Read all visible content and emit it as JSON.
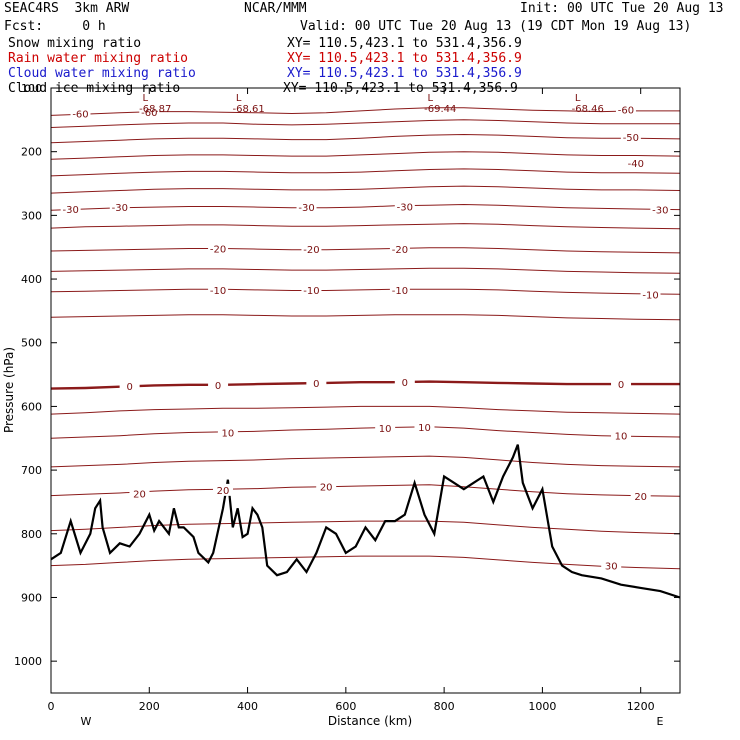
{
  "header": {
    "model": "SEAC4RS  3km ARW",
    "fcst": "Fcst:     0 h",
    "center": "NCAR/MMM",
    "init": "Init: 00 UTC Tue 20 Aug 13",
    "valid": "Valid: 00 UTC Tue 20 Aug 13 (19 CDT Mon 19 Aug 13)"
  },
  "legend": [
    {
      "label": "Snow mixing ratio",
      "xy": "XY= 110.5,423.1 to 531.4,356.9",
      "color": "#000000"
    },
    {
      "label": "Rain water mixing ratio",
      "xy": "XY= 110.5,423.1 to 531.4,356.9",
      "color": "#cc0000"
    },
    {
      "label": "Cloud water mixing ratio",
      "xy": "XY= 110.5,423.1 to 531.4,356.9",
      "color": "#1a1acc"
    },
    {
      "label": "Cloud ice mixing ratio",
      "xy": "XY= 110.5,423.1 to 531.4,356.9",
      "color": "#000000"
    }
  ],
  "chart_data": {
    "type": "line",
    "xlabel": "Distance (km)",
    "ylabel": "Pressure (hPa)",
    "xlim": [
      0,
      1280
    ],
    "ylim": [
      100,
      1050
    ],
    "x_ticks": [
      "0",
      "200",
      "400",
      "600",
      "800",
      "1000",
      "1200"
    ],
    "y_ticks": [
      "100",
      "200",
      "300",
      "400",
      "500",
      "600",
      "700",
      "800",
      "900",
      "1000"
    ],
    "x_end_labels": {
      "left": "W",
      "right": "E"
    },
    "temperature_contour_color": "#8b1a1a",
    "terrain_color": "#000000",
    "isotherms": [
      {
        "temp": -60,
        "p": [
          143,
          141,
          139,
          137,
          137,
          138,
          139,
          140,
          139,
          136,
          133,
          131,
          131,
          133,
          135,
          136,
          137,
          136,
          136
        ]
      },
      {
        "temp": -55,
        "p": [
          162,
          160,
          158,
          156,
          155,
          155,
          157,
          158,
          157,
          155,
          153,
          151,
          150,
          151,
          153,
          155,
          156,
          156,
          156
        ]
      },
      {
        "temp": -50,
        "p": [
          186,
          184,
          182,
          180,
          179,
          179,
          180,
          181,
          181,
          179,
          176,
          174,
          173,
          174,
          176,
          178,
          179,
          179,
          180
        ]
      },
      {
        "temp": -45,
        "p": [
          212,
          210,
          208,
          206,
          205,
          205,
          206,
          207,
          207,
          205,
          203,
          201,
          200,
          201,
          203,
          205,
          206,
          206,
          207
        ]
      },
      {
        "temp": -40,
        "p": [
          238,
          236,
          234,
          232,
          231,
          231,
          232,
          233,
          233,
          232,
          230,
          228,
          227,
          228,
          230,
          232,
          233,
          233,
          234
        ]
      },
      {
        "temp": -35,
        "p": [
          265,
          263,
          261,
          259,
          258,
          258,
          259,
          260,
          260,
          259,
          257,
          255,
          254,
          255,
          257,
          259,
          260,
          260,
          261
        ]
      },
      {
        "temp": -30,
        "p": [
          292,
          290,
          288,
          287,
          286,
          286,
          287,
          288,
          288,
          287,
          285,
          284,
          283,
          284,
          286,
          288,
          289,
          290,
          291
        ]
      },
      {
        "temp": -25,
        "p": [
          320,
          318,
          317,
          316,
          315,
          315,
          316,
          317,
          317,
          316,
          315,
          314,
          313,
          314,
          316,
          318,
          319,
          320,
          321
        ]
      },
      {
        "temp": -20,
        "p": [
          356,
          355,
          354,
          353,
          352,
          352,
          353,
          354,
          354,
          353,
          352,
          351,
          351,
          352,
          354,
          356,
          357,
          358,
          359
        ]
      },
      {
        "temp": -15,
        "p": [
          388,
          387,
          386,
          385,
          384,
          384,
          385,
          386,
          386,
          385,
          384,
          383,
          383,
          384,
          386,
          388,
          389,
          390,
          391
        ]
      },
      {
        "temp": -10,
        "p": [
          420,
          419,
          418,
          417,
          416,
          416,
          417,
          418,
          418,
          417,
          416,
          416,
          416,
          417,
          419,
          421,
          422,
          423,
          424
        ]
      },
      {
        "temp": -5,
        "p": [
          460,
          459,
          458,
          457,
          456,
          456,
          457,
          458,
          458,
          457,
          456,
          456,
          456,
          457,
          459,
          461,
          462,
          463,
          464
        ]
      },
      {
        "temp": 0,
        "p": [
          572,
          571,
          569,
          567,
          566,
          566,
          565,
          564,
          563,
          562,
          562,
          561,
          562,
          563,
          564,
          565,
          565,
          565,
          565
        ]
      },
      {
        "temp": 5,
        "p": [
          612,
          610,
          607,
          605,
          604,
          603,
          603,
          602,
          601,
          600,
          600,
          600,
          602,
          605,
          607,
          609,
          610,
          611,
          612
        ]
      },
      {
        "temp": 10,
        "p": [
          650,
          648,
          646,
          643,
          641,
          640,
          639,
          637,
          636,
          634,
          633,
          632,
          634,
          638,
          641,
          644,
          646,
          647,
          648
        ]
      },
      {
        "temp": 15,
        "p": [
          695,
          693,
          691,
          688,
          686,
          685,
          684,
          682,
          681,
          680,
          679,
          678,
          680,
          684,
          688,
          691,
          693,
          694,
          695
        ]
      },
      {
        "temp": 20,
        "p": [
          740,
          738,
          736,
          733,
          731,
          730,
          729,
          727,
          726,
          725,
          724,
          723,
          726,
          730,
          734,
          737,
          739,
          740,
          741
        ]
      },
      {
        "temp": 25,
        "p": [
          795,
          793,
          790,
          787,
          785,
          784,
          783,
          782,
          781,
          780,
          780,
          780,
          782,
          786,
          790,
          793,
          796,
          798,
          800
        ]
      },
      {
        "temp": 30,
        "p": [
          850,
          848,
          845,
          842,
          840,
          839,
          838,
          837,
          836,
          835,
          835,
          835,
          837,
          841,
          845,
          848,
          851,
          853,
          855
        ]
      }
    ],
    "isotherm_x": [
      0,
      70,
      140,
      210,
      280,
      350,
      420,
      490,
      560,
      630,
      700,
      770,
      840,
      910,
      980,
      1050,
      1120,
      1190,
      1280
    ],
    "terrain": {
      "x": [
        0,
        20,
        40,
        50,
        60,
        80,
        90,
        100,
        105,
        120,
        140,
        160,
        180,
        200,
        210,
        220,
        240,
        250,
        260,
        270,
        290,
        300,
        320,
        330,
        350,
        360,
        370,
        380,
        390,
        400,
        410,
        420,
        430,
        440,
        460,
        480,
        500,
        520,
        540,
        560,
        580,
        600,
        620,
        640,
        660,
        680,
        700,
        720,
        740,
        760,
        780,
        800,
        820,
        840,
        860,
        880,
        900,
        920,
        940,
        950,
        960,
        980,
        1000,
        1020,
        1040,
        1060,
        1080,
        1120,
        1160,
        1200,
        1240,
        1280
      ],
      "p": [
        840,
        830,
        780,
        805,
        830,
        800,
        760,
        748,
        790,
        830,
        815,
        820,
        800,
        770,
        795,
        780,
        800,
        760,
        790,
        790,
        805,
        830,
        845,
        830,
        760,
        715,
        790,
        760,
        805,
        800,
        760,
        770,
        790,
        850,
        865,
        860,
        840,
        860,
        830,
        790,
        800,
        830,
        820,
        790,
        810,
        780,
        780,
        770,
        720,
        770,
        800,
        710,
        720,
        730,
        720,
        710,
        750,
        710,
        680,
        660,
        720,
        760,
        730,
        820,
        850,
        860,
        865,
        870,
        880,
        885,
        890,
        900
      ]
    },
    "lows": [
      {
        "x": 200,
        "label": "-68.87"
      },
      {
        "x": 390,
        "label": "-68.61"
      },
      {
        "x": 780,
        "label": "-69.44"
      },
      {
        "x": 1080,
        "label": "-68.46"
      }
    ],
    "contour_labels": [
      {
        "temp": "-60",
        "x": 60,
        "p": 140
      },
      {
        "temp": "-60",
        "x": 200,
        "p": 138
      },
      {
        "temp": "-60",
        "x": 1170,
        "p": 134
      },
      {
        "temp": "-50",
        "x": 1180,
        "p": 177
      },
      {
        "temp": "-40",
        "x": 1190,
        "p": 218
      },
      {
        "temp": "-30",
        "x": 40,
        "p": 290
      },
      {
        "temp": "-30",
        "x": 140,
        "p": 287
      },
      {
        "temp": "-30",
        "x": 520,
        "p": 287
      },
      {
        "temp": "-30",
        "x": 720,
        "p": 286
      },
      {
        "temp": "-30",
        "x": 1240,
        "p": 291
      },
      {
        "temp": "-20",
        "x": 340,
        "p": 352
      },
      {
        "temp": "-20",
        "x": 530,
        "p": 353
      },
      {
        "temp": "-20",
        "x": 710,
        "p": 353
      },
      {
        "temp": "-10",
        "x": 340,
        "p": 417
      },
      {
        "temp": "-10",
        "x": 530,
        "p": 417
      },
      {
        "temp": "-10",
        "x": 710,
        "p": 417
      },
      {
        "temp": "-10",
        "x": 1220,
        "p": 424
      },
      {
        "temp": "0",
        "x": 160,
        "p": 568
      },
      {
        "temp": "0",
        "x": 340,
        "p": 566
      },
      {
        "temp": "0",
        "x": 540,
        "p": 563
      },
      {
        "temp": "0",
        "x": 720,
        "p": 562
      },
      {
        "temp": "0",
        "x": 1160,
        "p": 565
      },
      {
        "temp": "10",
        "x": 360,
        "p": 641
      },
      {
        "temp": "10",
        "x": 680,
        "p": 634
      },
      {
        "temp": "10",
        "x": 760,
        "p": 632
      },
      {
        "temp": "10",
        "x": 1160,
        "p": 646
      },
      {
        "temp": "20",
        "x": 180,
        "p": 737
      },
      {
        "temp": "20",
        "x": 350,
        "p": 731
      },
      {
        "temp": "20",
        "x": 560,
        "p": 726
      },
      {
        "temp": "20",
        "x": 1200,
        "p": 741
      },
      {
        "temp": "30",
        "x": 1140,
        "p": 850
      }
    ]
  }
}
